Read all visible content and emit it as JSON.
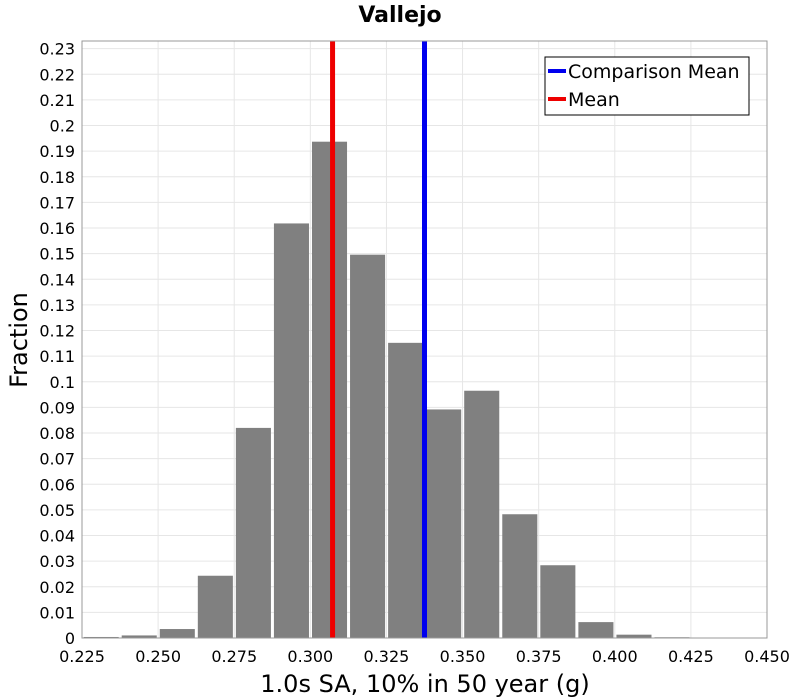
{
  "chart_data": {
    "type": "bar",
    "title": "Vallejo",
    "xlabel": "1.0s SA, 10% in 50 year (g)",
    "ylabel": "Fraction",
    "xlim": [
      0.225,
      0.45
    ],
    "ylim": [
      0,
      0.233
    ],
    "grid": true,
    "legend_position": "top-right",
    "x_ticks": [
      "0.225",
      "0.250",
      "0.275",
      "0.300",
      "0.325",
      "0.350",
      "0.375",
      "0.400",
      "0.425",
      "0.450"
    ],
    "y_ticks": [
      "0",
      "0.01",
      "0.02",
      "0.03",
      "0.04",
      "0.05",
      "0.06",
      "0.07",
      "0.08",
      "0.09",
      "0.1",
      "0.11",
      "0.12",
      "0.13",
      "0.14",
      "0.15",
      "0.16",
      "0.17",
      "0.18",
      "0.19",
      "0.2",
      "0.21",
      "0.22",
      "0.23"
    ],
    "bin_width": 0.0125,
    "bins": [
      {
        "x": 0.2313,
        "value": 0.0004
      },
      {
        "x": 0.2438,
        "value": 0.001
      },
      {
        "x": 0.2563,
        "value": 0.0035
      },
      {
        "x": 0.2688,
        "value": 0.0243
      },
      {
        "x": 0.2813,
        "value": 0.082
      },
      {
        "x": 0.2938,
        "value": 0.1618
      },
      {
        "x": 0.3063,
        "value": 0.1937
      },
      {
        "x": 0.3188,
        "value": 0.1496
      },
      {
        "x": 0.3313,
        "value": 0.1152
      },
      {
        "x": 0.3438,
        "value": 0.0892
      },
      {
        "x": 0.3563,
        "value": 0.0965
      },
      {
        "x": 0.3688,
        "value": 0.0483
      },
      {
        "x": 0.3813,
        "value": 0.0284
      },
      {
        "x": 0.3938,
        "value": 0.0062
      },
      {
        "x": 0.4063,
        "value": 0.0013
      },
      {
        "x": 0.4188,
        "value": 0.0003
      }
    ],
    "bar_color": "#808080",
    "lines": [
      {
        "name": "Comparison Mean",
        "x": 0.3375,
        "color": "#0000ee"
      },
      {
        "name": "Mean",
        "x": 0.3073,
        "color": "#ee0000"
      }
    ]
  }
}
